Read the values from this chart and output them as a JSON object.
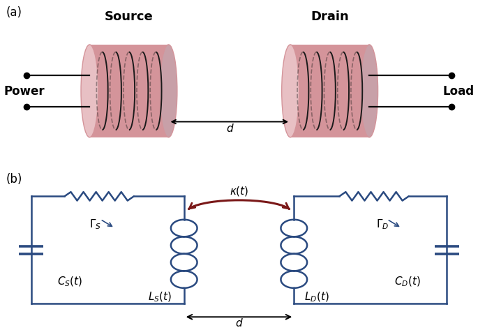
{
  "panel_a_label": "(a)",
  "panel_b_label": "(b)",
  "source_label": "Source",
  "drain_label": "Drain",
  "power_label": "Power",
  "load_label": "Load",
  "d_label": "d",
  "kappa_label": "$\\kappa(t)$",
  "gamma_s_label": "$\\Gamma_S$",
  "gamma_d_label": "$\\Gamma_D$",
  "cs_label": "$C_S(t)$",
  "ls_label": "$L_S(t)$",
  "ld_label": "$L_D(t)$",
  "cd_label": "$C_D(t)$",
  "coil_body_color": "#d4949a",
  "coil_edge_color": "#c08090",
  "coil_left_face": "#e8c0c4",
  "coil_right_face": "#c8a0a8",
  "circuit_color": "#2a4a80",
  "arrow_color": "#7a1818",
  "bg_color": "#ffffff",
  "coil_wire_color": "#1a1a1a",
  "text_color": "#000000"
}
